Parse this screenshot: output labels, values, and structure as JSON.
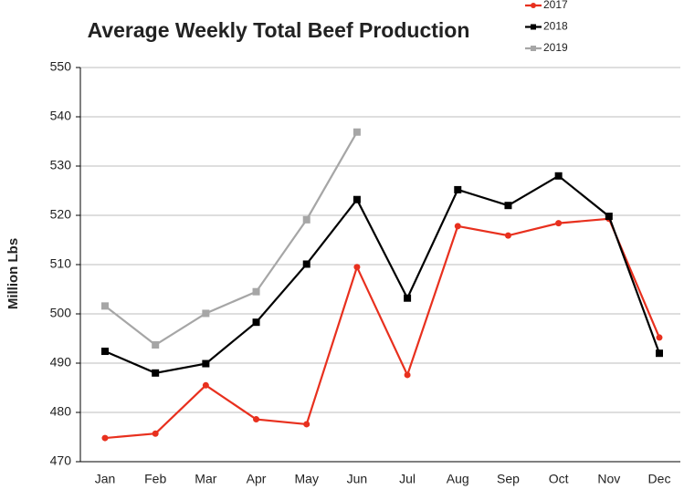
{
  "chart_data": {
    "type": "line",
    "title": "Average Weekly Total Beef Production",
    "y_label": "Million Lbs",
    "categories": [
      "Jan",
      "Feb",
      "Mar",
      "Apr",
      "May",
      "Jun",
      "Jul",
      "Aug",
      "Sep",
      "Oct",
      "Nov",
      "Dec"
    ],
    "series": [
      {
        "name": "2017",
        "color": "#e8301e",
        "marker": "circle",
        "values": [
          474.8,
          475.7,
          485.5,
          478.6,
          477.6,
          509.5,
          487.6,
          517.8,
          515.9,
          518.4,
          519.3,
          495.2
        ]
      },
      {
        "name": "2018",
        "color": "#000000",
        "marker": "square",
        "values": [
          492.4,
          488.0,
          489.9,
          498.3,
          510.1,
          523.2,
          503.2,
          525.2,
          522.0,
          528.0,
          519.8,
          492.0
        ]
      },
      {
        "name": "2019",
        "color": "#a6a6a6",
        "marker": "square",
        "values": [
          501.6,
          493.7,
          500.1,
          504.5,
          519.1,
          536.9,
          null,
          null,
          null,
          null,
          null,
          null
        ]
      }
    ],
    "ylim": [
      470,
      550
    ],
    "yticks": [
      470,
      480,
      490,
      500,
      510,
      520,
      530,
      540,
      550
    ],
    "grid": true,
    "legend": "top-right"
  }
}
